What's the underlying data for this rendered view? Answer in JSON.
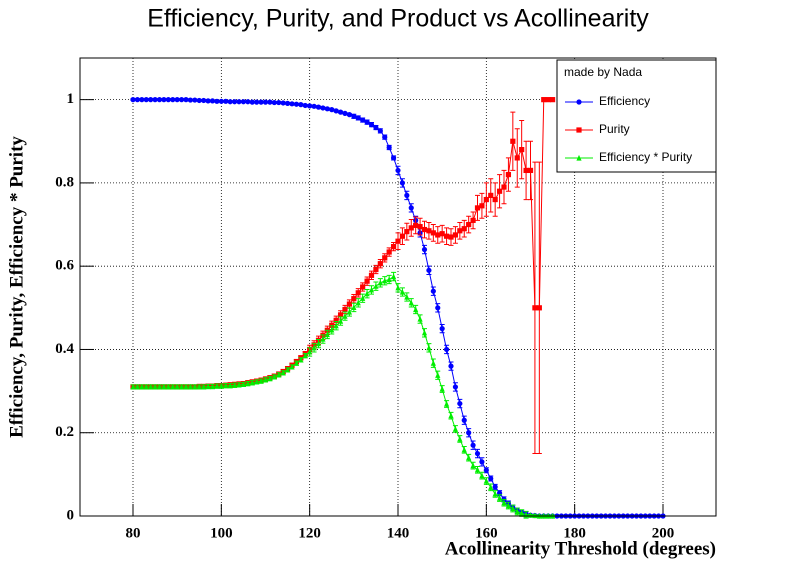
{
  "chart_data": {
    "type": "line",
    "title": "Efficiency, Purity, and Product vs Acollinearity",
    "x_label": "Acollinearity Threshold (degrees)",
    "y_label": "Efficiency, Purity, Efficiency * Purity",
    "legend_title": "made by Nada",
    "legend": "top-right",
    "grid": true,
    "xlim": [
      68,
      212
    ],
    "ylim": [
      0,
      1.1
    ],
    "xticks": [
      80,
      100,
      120,
      140,
      160,
      180,
      200
    ],
    "yticks": [
      0,
      0.2,
      0.4,
      0.6,
      0.8,
      1
    ],
    "x": [
      80,
      81,
      82,
      83,
      84,
      85,
      86,
      87,
      88,
      89,
      90,
      91,
      92,
      93,
      94,
      95,
      96,
      97,
      98,
      99,
      100,
      101,
      102,
      103,
      104,
      105,
      106,
      107,
      108,
      109,
      110,
      111,
      112,
      113,
      114,
      115,
      116,
      117,
      118,
      119,
      120,
      121,
      122,
      123,
      124,
      125,
      126,
      127,
      128,
      129,
      130,
      131,
      132,
      133,
      134,
      135,
      136,
      137,
      138,
      139,
      140,
      141,
      142,
      143,
      144,
      145,
      146,
      147,
      148,
      149,
      150,
      151,
      152,
      153,
      154,
      155,
      156,
      157,
      158,
      159,
      160,
      161,
      162,
      163,
      164,
      165,
      166,
      167,
      168,
      169,
      170,
      171,
      172,
      173,
      174,
      175,
      176,
      177,
      178,
      179,
      180,
      181,
      182,
      183,
      184,
      185,
      186,
      187,
      188,
      189,
      190,
      191,
      192,
      193,
      194,
      195,
      196,
      197,
      198,
      199,
      200
    ],
    "series": [
      {
        "name": "Efficiency",
        "color": "#0000ff",
        "marker": "circle",
        "values": [
          1,
          1,
          1,
          1,
          1,
          1,
          1,
          1,
          1,
          1,
          1,
          1,
          1,
          0.999,
          0.999,
          0.998,
          0.998,
          0.997,
          0.997,
          0.996,
          0.996,
          0.996,
          0.995,
          0.995,
          0.995,
          0.995,
          0.995,
          0.994,
          0.994,
          0.994,
          0.994,
          0.994,
          0.993,
          0.993,
          0.992,
          0.991,
          0.99,
          0.989,
          0.988,
          0.986,
          0.985,
          0.984,
          0.982,
          0.98,
          0.978,
          0.976,
          0.973,
          0.97,
          0.967,
          0.964,
          0.96,
          0.956,
          0.951,
          0.946,
          0.94,
          0.933,
          0.925,
          0.91,
          0.885,
          0.86,
          0.83,
          0.8,
          0.77,
          0.74,
          0.71,
          0.68,
          0.64,
          0.59,
          0.54,
          0.5,
          0.45,
          0.4,
          0.36,
          0.31,
          0.27,
          0.23,
          0.2,
          0.17,
          0.15,
          0.13,
          0.11,
          0.09,
          0.07,
          0.055,
          0.04,
          0.03,
          0.02,
          0.013,
          0.008,
          0.004,
          0.002,
          0.001,
          0,
          0,
          0,
          0,
          0,
          0,
          0,
          0,
          0,
          0,
          0,
          0,
          0,
          0,
          0,
          0,
          0,
          0,
          0,
          0,
          0,
          0,
          0,
          0,
          0,
          0,
          0,
          0,
          0
        ],
        "errors": [
          0.002,
          0.002,
          0.002,
          0.002,
          0.002,
          0.002,
          0.002,
          0.002,
          0.002,
          0.002,
          0.002,
          0.002,
          0.002,
          0.002,
          0.002,
          0.002,
          0.002,
          0.002,
          0.002,
          0.002,
          0.002,
          0.002,
          0.002,
          0.002,
          0.002,
          0.002,
          0.002,
          0.002,
          0.002,
          0.002,
          0.002,
          0.002,
          0.002,
          0.002,
          0.002,
          0.002,
          0.002,
          0.002,
          0.002,
          0.002,
          0.002,
          0.002,
          0.002,
          0.002,
          0.002,
          0.002,
          0.002,
          0.002,
          0.002,
          0.002,
          0.005,
          0.005,
          0.005,
          0.005,
          0.005,
          0.005,
          0.005,
          0.005,
          0.005,
          0.005,
          0.01,
          0.01,
          0.01,
          0.01,
          0.01,
          0.01,
          0.01,
          0.01,
          0.01,
          0.01,
          0.01,
          0.01,
          0.01,
          0.01,
          0.01,
          0.01,
          0.01,
          0.01,
          0.01,
          0.01,
          0.006,
          0.006,
          0.006,
          0.006,
          0.006,
          0.006,
          0.006,
          0.006,
          0.006,
          0.006,
          0.001,
          0.001,
          0,
          0,
          0,
          0,
          0,
          0,
          0,
          0,
          0,
          0,
          0,
          0,
          0,
          0,
          0,
          0,
          0,
          0,
          0,
          0,
          0,
          0,
          0,
          0,
          0,
          0,
          0,
          0,
          0
        ]
      },
      {
        "name": "Purity",
        "color": "#ff0000",
        "marker": "square",
        "values": [
          0.31,
          0.31,
          0.31,
          0.31,
          0.31,
          0.31,
          0.31,
          0.31,
          0.31,
          0.31,
          0.31,
          0.31,
          0.31,
          0.31,
          0.31,
          0.311,
          0.311,
          0.312,
          0.312,
          0.313,
          0.313,
          0.314,
          0.315,
          0.316,
          0.317,
          0.318,
          0.32,
          0.322,
          0.324,
          0.326,
          0.329,
          0.332,
          0.336,
          0.341,
          0.347,
          0.354,
          0.362,
          0.371,
          0.38,
          0.39,
          0.4,
          0.411,
          0.422,
          0.434,
          0.446,
          0.458,
          0.47,
          0.483,
          0.496,
          0.509,
          0.522,
          0.536,
          0.55,
          0.564,
          0.578,
          0.592,
          0.606,
          0.62,
          0.634,
          0.647,
          0.66,
          0.672,
          0.683,
          0.692,
          0.698,
          0.695,
          0.688,
          0.685,
          0.68,
          0.675,
          0.678,
          0.672,
          0.67,
          0.675,
          0.685,
          0.69,
          0.7,
          0.71,
          0.74,
          0.745,
          0.76,
          0.77,
          0.76,
          0.78,
          0.79,
          0.82,
          0.9,
          0.86,
          0.88,
          0.83,
          0.83,
          0.5,
          0.5,
          1,
          1,
          1,
          null,
          null,
          null,
          null,
          null,
          null,
          null,
          null,
          null,
          null,
          null,
          null,
          null,
          null,
          null,
          null,
          null,
          null,
          null,
          null,
          null,
          null,
          null,
          null,
          null
        ],
        "errors": [
          0.005,
          0.005,
          0.005,
          0.005,
          0.005,
          0.005,
          0.005,
          0.005,
          0.005,
          0.005,
          0.005,
          0.005,
          0.005,
          0.005,
          0.005,
          0.005,
          0.005,
          0.005,
          0.005,
          0.005,
          0.005,
          0.005,
          0.005,
          0.005,
          0.005,
          0.005,
          0.005,
          0.005,
          0.005,
          0.005,
          0.005,
          0.005,
          0.005,
          0.005,
          0.005,
          0.005,
          0.005,
          0.005,
          0.005,
          0.005,
          0.01,
          0.01,
          0.01,
          0.01,
          0.01,
          0.01,
          0.01,
          0.01,
          0.01,
          0.01,
          0.01,
          0.01,
          0.01,
          0.01,
          0.01,
          0.01,
          0.01,
          0.01,
          0.01,
          0.01,
          0.02,
          0.02,
          0.02,
          0.02,
          0.02,
          0.02,
          0.02,
          0.02,
          0.02,
          0.02,
          0.02,
          0.02,
          0.02,
          0.02,
          0.02,
          0.02,
          0.02,
          0.02,
          0.03,
          0.03,
          0.04,
          0.04,
          0.04,
          0.04,
          0.04,
          0.04,
          0.07,
          0.07,
          0.07,
          0.07,
          0.07,
          0.35,
          0.35,
          0,
          0,
          0,
          null,
          null,
          null,
          null,
          null,
          null,
          null,
          null,
          null,
          null,
          null,
          null,
          null,
          null,
          null,
          null,
          null,
          null,
          null,
          null,
          null,
          null,
          null,
          null,
          null
        ]
      },
      {
        "name": "Efficiency * Purity",
        "color": "#00ee00",
        "marker": "triangle",
        "values": [
          0.31,
          0.31,
          0.31,
          0.31,
          0.31,
          0.31,
          0.31,
          0.31,
          0.31,
          0.31,
          0.31,
          0.31,
          0.31,
          0.31,
          0.31,
          0.31,
          0.31,
          0.311,
          0.311,
          0.312,
          0.312,
          0.313,
          0.313,
          0.314,
          0.315,
          0.316,
          0.318,
          0.32,
          0.322,
          0.324,
          0.327,
          0.33,
          0.334,
          0.339,
          0.344,
          0.351,
          0.358,
          0.367,
          0.375,
          0.385,
          0.394,
          0.404,
          0.414,
          0.425,
          0.436,
          0.447,
          0.457,
          0.468,
          0.48,
          0.49,
          0.501,
          0.512,
          0.523,
          0.534,
          0.543,
          0.552,
          0.56,
          0.565,
          0.568,
          0.575,
          0.548,
          0.538,
          0.526,
          0.512,
          0.496,
          0.473,
          0.44,
          0.404,
          0.367,
          0.338,
          0.305,
          0.269,
          0.241,
          0.209,
          0.185,
          0.159,
          0.14,
          0.121,
          0.111,
          0.097,
          0.084,
          0.069,
          0.053,
          0.043,
          0.032,
          0.025,
          0.018,
          0.011,
          0.007,
          0.003,
          0.002,
          0.001,
          0,
          0,
          0,
          0,
          null,
          null,
          null,
          null,
          null,
          null,
          null,
          null,
          null,
          null,
          null,
          null,
          null,
          null,
          null,
          null,
          null,
          null,
          null,
          null,
          null,
          null,
          null,
          null,
          null
        ],
        "errors": [
          0.005,
          0.005,
          0.005,
          0.005,
          0.005,
          0.005,
          0.005,
          0.005,
          0.005,
          0.005,
          0.005,
          0.005,
          0.005,
          0.005,
          0.005,
          0.005,
          0.005,
          0.005,
          0.005,
          0.005,
          0.005,
          0.005,
          0.005,
          0.005,
          0.005,
          0.005,
          0.005,
          0.005,
          0.005,
          0.005,
          0.005,
          0.005,
          0.005,
          0.005,
          0.005,
          0.005,
          0.005,
          0.005,
          0.005,
          0.005,
          0.01,
          0.01,
          0.01,
          0.01,
          0.01,
          0.01,
          0.01,
          0.01,
          0.01,
          0.01,
          0.01,
          0.01,
          0.01,
          0.01,
          0.01,
          0.01,
          0.01,
          0.01,
          0.01,
          0.01,
          0.01,
          0.01,
          0.01,
          0.01,
          0.01,
          0.01,
          0.01,
          0.01,
          0.01,
          0.01,
          0.008,
          0.008,
          0.008,
          0.008,
          0.008,
          0.008,
          0.008,
          0.008,
          0.008,
          0.008,
          0.008,
          0.008,
          0.008,
          0.008,
          0.008,
          0.008,
          0.008,
          0.008,
          0.008,
          0.008,
          0.002,
          0.002,
          0.002,
          0.002,
          0.002,
          0.002,
          null,
          null,
          null,
          null,
          null,
          null,
          null,
          null,
          null,
          null,
          null,
          null,
          null,
          null,
          null,
          null,
          null,
          null,
          null,
          null,
          null,
          null,
          null,
          null,
          null
        ]
      }
    ]
  }
}
